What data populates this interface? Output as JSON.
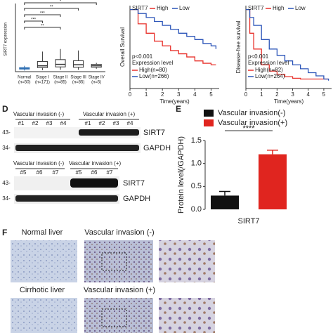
{
  "panel_labels": {
    "d": "D",
    "e": "E",
    "f": "F"
  },
  "chart_data": [
    {
      "type": "box",
      "ylabel": "SIRT7 expression",
      "categories": [
        "Normal",
        "Stage I",
        "Stage II",
        "Stage III",
        "Stage IV"
      ],
      "group_sizes": [
        "(n=50)",
        "(n=171)",
        "(n=85)",
        "(n=85)",
        "(n=5)"
      ],
      "whisker_low": [
        0.3,
        0.4,
        0.5,
        0.5,
        0.8
      ],
      "q1": [
        0.7,
        1.1,
        1.3,
        1.2,
        1.2
      ],
      "median": [
        0.9,
        1.6,
        2.0,
        1.9,
        1.6
      ],
      "q3": [
        1.1,
        2.8,
        3.3,
        3.0,
        2.0
      ],
      "whisker_high": [
        1.6,
        5.5,
        6.2,
        5.8,
        2.4
      ],
      "ylim": [
        0,
        10
      ],
      "colors": [
        "#2f6fb3",
        "#333333"
      ],
      "significance": [
        "*",
        "**",
        "***",
        "***",
        "**"
      ]
    },
    {
      "type": "survival",
      "ylabel": "Overall Survival",
      "xlabel": "Time(years)",
      "legend_title": "SIRT7",
      "x": [
        0,
        0.5,
        1,
        1.5,
        2,
        2.5,
        3,
        3.5,
        4,
        4.5,
        5,
        5.3
      ],
      "xlim": [
        0,
        5.5
      ],
      "xticks": [
        0,
        1,
        2,
        3,
        4,
        5
      ],
      "ylim": [
        0,
        1.05
      ],
      "series": [
        {
          "name": "High",
          "color": "#e8302a",
          "values": [
            1,
            0.82,
            0.7,
            0.6,
            0.54,
            0.48,
            0.44,
            0.4,
            0.35,
            0.32,
            0.3,
            0.3
          ]
        },
        {
          "name": "Low",
          "color": "#2b54b8",
          "values": [
            1,
            0.95,
            0.9,
            0.85,
            0.8,
            0.75,
            0.7,
            0.66,
            0.62,
            0.57,
            0.54,
            0.5
          ]
        }
      ],
      "p_value": "p<0.001",
      "legend2_title": "Expression level",
      "legend2": [
        "High(n=80)",
        "Low(n=266)"
      ]
    },
    {
      "type": "survival",
      "ylabel": "Disease-free survival",
      "xlabel": "Time(years)",
      "legend_title": "SIRT7",
      "x": [
        0,
        0.25,
        0.5,
        1,
        1.5,
        2,
        2.5,
        3,
        3.5,
        4,
        4.5,
        5,
        5.3
      ],
      "xlim": [
        0,
        5.5
      ],
      "xticks": [
        0,
        1,
        2,
        3,
        4,
        5
      ],
      "ylim": [
        0,
        1.05
      ],
      "series": [
        {
          "name": "High",
          "color": "#e8302a",
          "values": [
            1,
            0.7,
            0.5,
            0.3,
            0.22,
            0.18,
            0.15,
            0.13,
            0.12,
            0.12,
            0.12,
            0.12,
            0.12
          ]
        },
        {
          "name": "Low",
          "color": "#2b54b8",
          "values": [
            1,
            0.9,
            0.8,
            0.62,
            0.5,
            0.42,
            0.35,
            0.3,
            0.25,
            0.2,
            0.16,
            0.12,
            0.1
          ]
        }
      ],
      "p_value": "p<0.001",
      "legend2_title": "Expression level",
      "legend2": [
        "High(n=82)",
        "Low(n=264)"
      ]
    },
    {
      "type": "bar",
      "ylabel": "Protein level(/GAPDH)",
      "categories": [
        "SIRT7"
      ],
      "ylim": [
        0,
        1.5
      ],
      "yticks": [
        {
          "value": 0,
          "label": "0.0"
        },
        {
          "value": 0.5,
          "label": "0.5"
        },
        {
          "value": 1,
          "label": "1.0"
        },
        {
          "value": 1.5,
          "label": "1.5"
        }
      ],
      "series": [
        {
          "name": "Vascular invasion(-)",
          "color": "#111111",
          "values": [
            0.3
          ],
          "errors": [
            0.09
          ]
        },
        {
          "name": "Vascular invasion(+)",
          "color": "#e0251f",
          "values": [
            1.2
          ],
          "errors": [
            0.09
          ]
        }
      ],
      "significance": "****"
    }
  ],
  "blots": {
    "top": {
      "groups": [
        "Vascular invasion (-)",
        "Vascular invasion (+)"
      ],
      "lanes": [
        "#1",
        "#2",
        "#3",
        "#4",
        "#1",
        "#2",
        "#3",
        "#4"
      ],
      "markers": [
        "43-",
        "34-"
      ],
      "proteins": [
        "SIRT7",
        "GAPDH"
      ]
    },
    "bottom": {
      "groups": [
        "Vascular invasion (-)",
        "Vascular invasion (+)"
      ],
      "lanes": [
        "#5",
        "#6",
        "#7",
        "#5",
        "#6",
        "#7"
      ],
      "markers": [
        "43-",
        "34-"
      ],
      "proteins": [
        "SIRT7",
        "GAPDH"
      ]
    }
  },
  "histology": {
    "row1": [
      "Normal liver",
      "Vascular invasion (-)"
    ],
    "row2": [
      "Cirrhotic liver",
      "Vascular invasion (+)"
    ]
  }
}
